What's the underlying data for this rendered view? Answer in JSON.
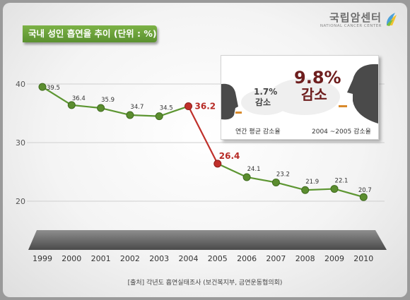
{
  "header": {
    "title": "국내 성인 흡연율 추이 (단위 : %)"
  },
  "logo": {
    "name": "국립암센터",
    "sub": "NATIONAL CANCER CENTER"
  },
  "inset": {
    "avg_value": "1.7%",
    "avg_word": "감소",
    "avg_caption": "연간 평균 감소율",
    "drop_value": "9.8%",
    "drop_word": "감소",
    "drop_caption": "2004 ~2005 감소율"
  },
  "source_note": "[출처] 각년도 흡연실태조사 (보건복지부, 금연운동협의회)",
  "colors": {
    "line": "#5d9632",
    "drop_line": "#c0302b",
    "highlight_label": "#b72a25",
    "title_bg": "#6aa33b"
  },
  "chart_data": {
    "type": "line",
    "title": "국내 성인 흡연율 추이 (단위 : %)",
    "xlabel": "",
    "ylabel": "",
    "categories": [
      "1999",
      "2000",
      "2001",
      "2002",
      "2003",
      "2004",
      "2005",
      "2006",
      "2007",
      "2008",
      "2009",
      "2010"
    ],
    "values": [
      39.5,
      36.4,
      35.9,
      34.7,
      34.5,
      36.2,
      26.4,
      24.1,
      23.2,
      21.9,
      22.1,
      20.7
    ],
    "value_labels": [
      "39.5",
      "36.4",
      "35.9",
      "34.7",
      "34.5",
      "36.2",
      "26.4",
      "24.1",
      "23.2",
      "21.9",
      "22.1",
      "20.7"
    ],
    "highlighted": [
      "2004",
      "2005"
    ],
    "y_ticks": [
      "40",
      "30",
      "20"
    ],
    "ylim": [
      20,
      40
    ],
    "grid": true,
    "legend": "none"
  }
}
